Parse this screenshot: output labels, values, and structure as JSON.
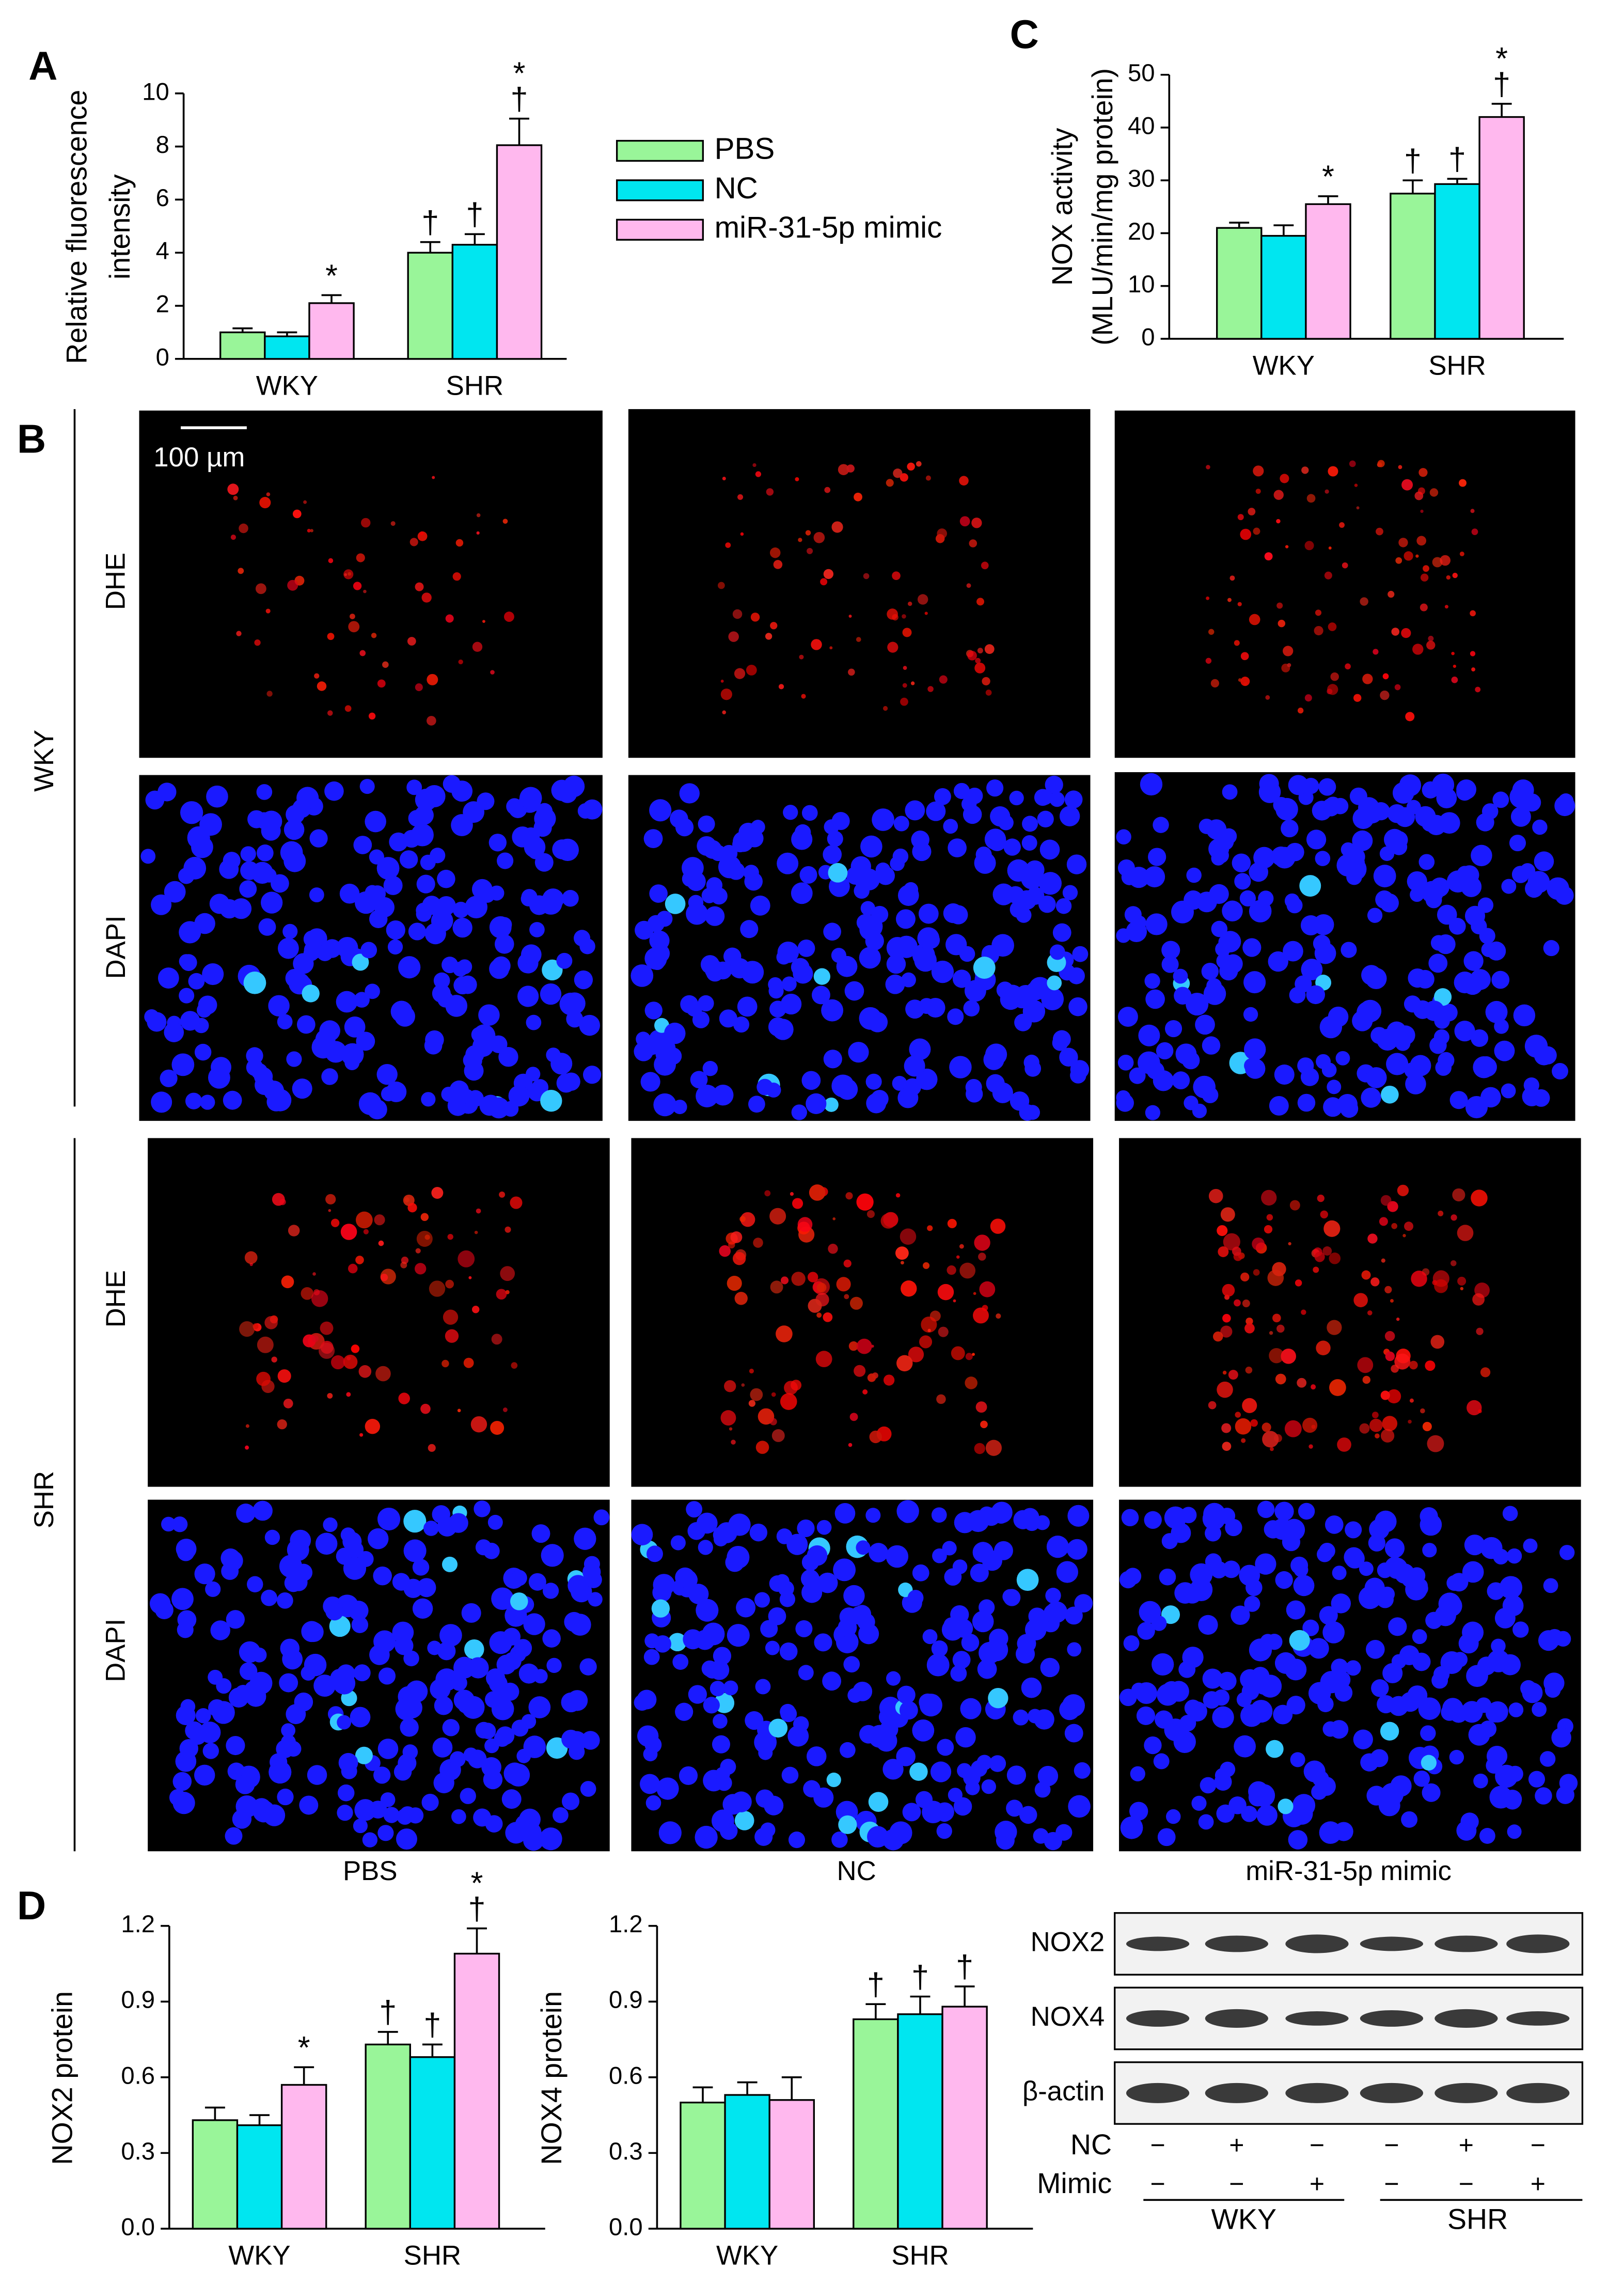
{
  "panel_labels": [
    "A",
    "B",
    "C",
    "D"
  ],
  "chart_data": [
    {
      "type": "bar",
      "ylabel": [
        "Relative fluorescence",
        "intensity"
      ],
      "categories": [
        "WKY",
        "SHR"
      ],
      "ylim": [
        0,
        10
      ],
      "yticks": [
        0,
        2,
        4,
        6,
        8,
        10
      ],
      "legend": true,
      "series": [
        {
          "name": "PBS",
          "color": "#99f599",
          "values": [
            1.0,
            4.0
          ],
          "errors": [
            0.15,
            0.4
          ],
          "annotations": [
            null,
            [
              "†"
            ]
          ]
        },
        {
          "name": "NC",
          "color": "#00e6f0",
          "values": [
            0.85,
            4.3
          ],
          "errors": [
            0.15,
            0.4
          ],
          "annotations": [
            null,
            [
              "†"
            ]
          ]
        },
        {
          "name": "miR-31-5p mimic",
          "color": "#ffb8ee",
          "values": [
            2.1,
            8.05
          ],
          "errors": [
            0.3,
            1.0
          ],
          "annotations": [
            [
              "*"
            ],
            [
              "*",
              "†"
            ]
          ]
        }
      ]
    },
    {
      "type": "bar",
      "ylabel": [
        "NOX activity",
        "(MLU/min/mg protein)"
      ],
      "categories": [
        "WKY",
        "SHR"
      ],
      "ylim": [
        0,
        50
      ],
      "yticks": [
        0,
        10,
        20,
        30,
        40,
        50
      ],
      "legend": false,
      "series": [
        {
          "name": "PBS",
          "color": "#99f599",
          "values": [
            21,
            27.5
          ],
          "errors": [
            1,
            2.5
          ],
          "annotations": [
            null,
            [
              "†"
            ]
          ]
        },
        {
          "name": "NC",
          "color": "#00e6f0",
          "values": [
            19.5,
            29.3
          ],
          "errors": [
            2,
            1
          ],
          "annotations": [
            null,
            [
              "†"
            ]
          ]
        },
        {
          "name": "miR-31-5p mimic",
          "color": "#ffb8ee",
          "values": [
            25.5,
            42
          ],
          "errors": [
            1.5,
            2.5
          ],
          "annotations": [
            [
              "*"
            ],
            [
              "*",
              "†"
            ]
          ]
        }
      ]
    },
    {
      "type": "bar",
      "ylabel": [
        "NOX2 protein"
      ],
      "categories": [
        "WKY",
        "SHR"
      ],
      "ylim": [
        0,
        1.2
      ],
      "yticks": [
        {
          "value": 0,
          "label": "0.0"
        },
        0.3,
        0.6,
        0.9,
        1.2
      ],
      "legend": false,
      "series": [
        {
          "name": "PBS",
          "color": "#99f599",
          "values": [
            0.43,
            0.73
          ],
          "errors": [
            0.05,
            0.05
          ],
          "annotations": [
            null,
            [
              "†"
            ]
          ]
        },
        {
          "name": "NC",
          "color": "#00e6f0",
          "values": [
            0.41,
            0.68
          ],
          "errors": [
            0.04,
            0.05
          ],
          "annotations": [
            null,
            [
              "†"
            ]
          ]
        },
        {
          "name": "miR-31-5p mimic",
          "color": "#ffb8ee",
          "values": [
            0.57,
            1.09
          ],
          "errors": [
            0.07,
            0.1
          ],
          "annotations": [
            [
              "*"
            ],
            [
              "*",
              "†"
            ]
          ]
        }
      ]
    },
    {
      "type": "bar",
      "ylabel": [
        "NOX4 protein"
      ],
      "categories": [
        "WKY",
        "SHR"
      ],
      "ylim": [
        0,
        1.2
      ],
      "yticks": [
        {
          "value": 0,
          "label": "0.0"
        },
        0.3,
        0.6,
        0.9,
        1.2
      ],
      "legend": false,
      "series": [
        {
          "name": "PBS",
          "color": "#99f599",
          "values": [
            0.5,
            0.83
          ],
          "errors": [
            0.06,
            0.06
          ],
          "annotations": [
            null,
            [
              "†"
            ]
          ]
        },
        {
          "name": "NC",
          "color": "#00e6f0",
          "values": [
            0.53,
            0.85
          ],
          "errors": [
            0.05,
            0.07
          ],
          "annotations": [
            null,
            [
              "†"
            ]
          ]
        },
        {
          "name": "miR-31-5p mimic",
          "color": "#ffb8ee",
          "values": [
            0.51,
            0.88
          ],
          "errors": [
            0.09,
            0.08
          ],
          "annotations": [
            null,
            [
              "†"
            ]
          ]
        }
      ]
    }
  ],
  "micrographs": {
    "scale_bar": "100 µm",
    "rows": [
      "WKY",
      "SHR"
    ],
    "channels": [
      "DHE",
      "DAPI"
    ],
    "columns": [
      "PBS",
      "NC",
      "miR-31-5p mimic"
    ]
  },
  "western_blot": {
    "proteins": [
      "NOX2",
      "NOX4",
      "β-actin"
    ],
    "conditions": [
      {
        "name": "NC",
        "signs": [
          "−",
          "+",
          "−",
          "−",
          "+",
          "−"
        ]
      },
      {
        "name": "Mimic",
        "signs": [
          "−",
          "−",
          "+",
          "−",
          "−",
          "+"
        ]
      }
    ],
    "groups": [
      "WKY",
      "SHR"
    ]
  }
}
